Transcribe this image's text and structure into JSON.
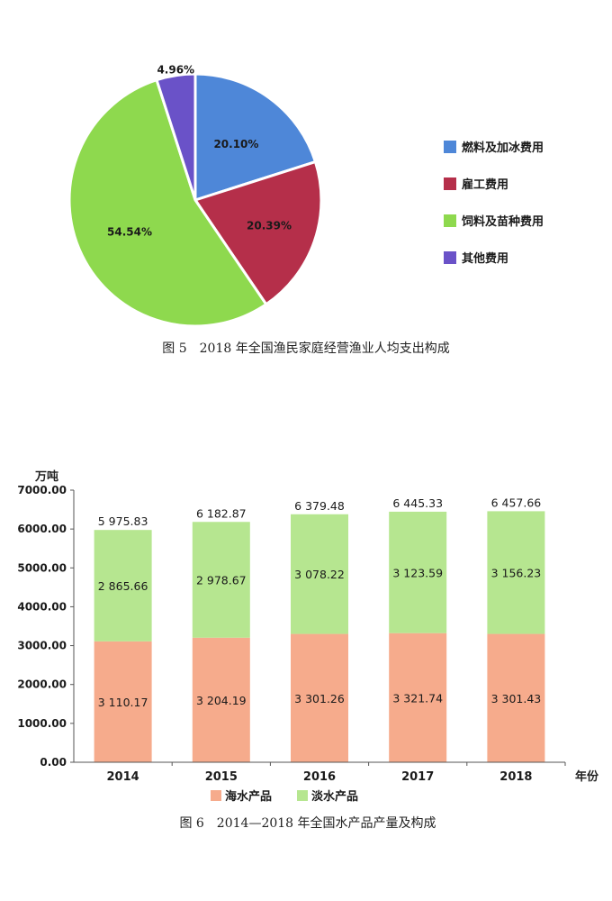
{
  "chart_data": [
    {
      "type": "pie",
      "caption": "图 5　2018 年全国渔民家庭经营渔业人均支出构成",
      "slices": [
        {
          "label": "燃料及加冰费用",
          "value": 20.1,
          "display": "20.10%",
          "color": "#4e87d8"
        },
        {
          "label": "雇工费用",
          "value": 20.39,
          "display": "20.39%",
          "color": "#b52f4a"
        },
        {
          "label": "饲料及苗种费用",
          "value": 54.54,
          "display": "54.54%",
          "color": "#8ed94e"
        },
        {
          "label": "其他费用",
          "value": 4.96,
          "display": "4.96%",
          "color": "#6a52c8"
        }
      ],
      "legend_position": "right"
    },
    {
      "type": "bar",
      "stacked": true,
      "caption": "图 6　2014—2018 年全国水产品产量及构成",
      "ylabel": "万吨",
      "xlabel": "年份",
      "ylim": [
        0,
        7000
      ],
      "yticks": [
        "0.00",
        "1000.00",
        "2000.00",
        "3000.00",
        "4000.00",
        "5000.00",
        "6000.00",
        "7000.00"
      ],
      "categories": [
        "2014",
        "2015",
        "2016",
        "2017",
        "2018"
      ],
      "series": [
        {
          "name": "海水产品",
          "color": "#f6ab8c",
          "values": [
            3110.17,
            3204.19,
            3301.26,
            3321.74,
            3301.43
          ],
          "labels": [
            "3 110.17",
            "3 204.19",
            "3 301.26",
            "3 321.74",
            "3 301.43"
          ]
        },
        {
          "name": "淡水产品",
          "color": "#b6e690",
          "values": [
            2865.66,
            2978.67,
            3078.22,
            3123.59,
            3156.23
          ],
          "labels": [
            "2 865.66",
            "2 978.67",
            "3 078.22",
            "3 123.59",
            "3 156.23"
          ]
        }
      ],
      "totals": [
        5975.83,
        6182.87,
        6379.48,
        6445.33,
        6457.66
      ],
      "total_labels": [
        "5 975.83",
        "6 182.87",
        "6 379.48",
        "6 445.33",
        "6 457.66"
      ],
      "legend_position": "bottom"
    }
  ]
}
